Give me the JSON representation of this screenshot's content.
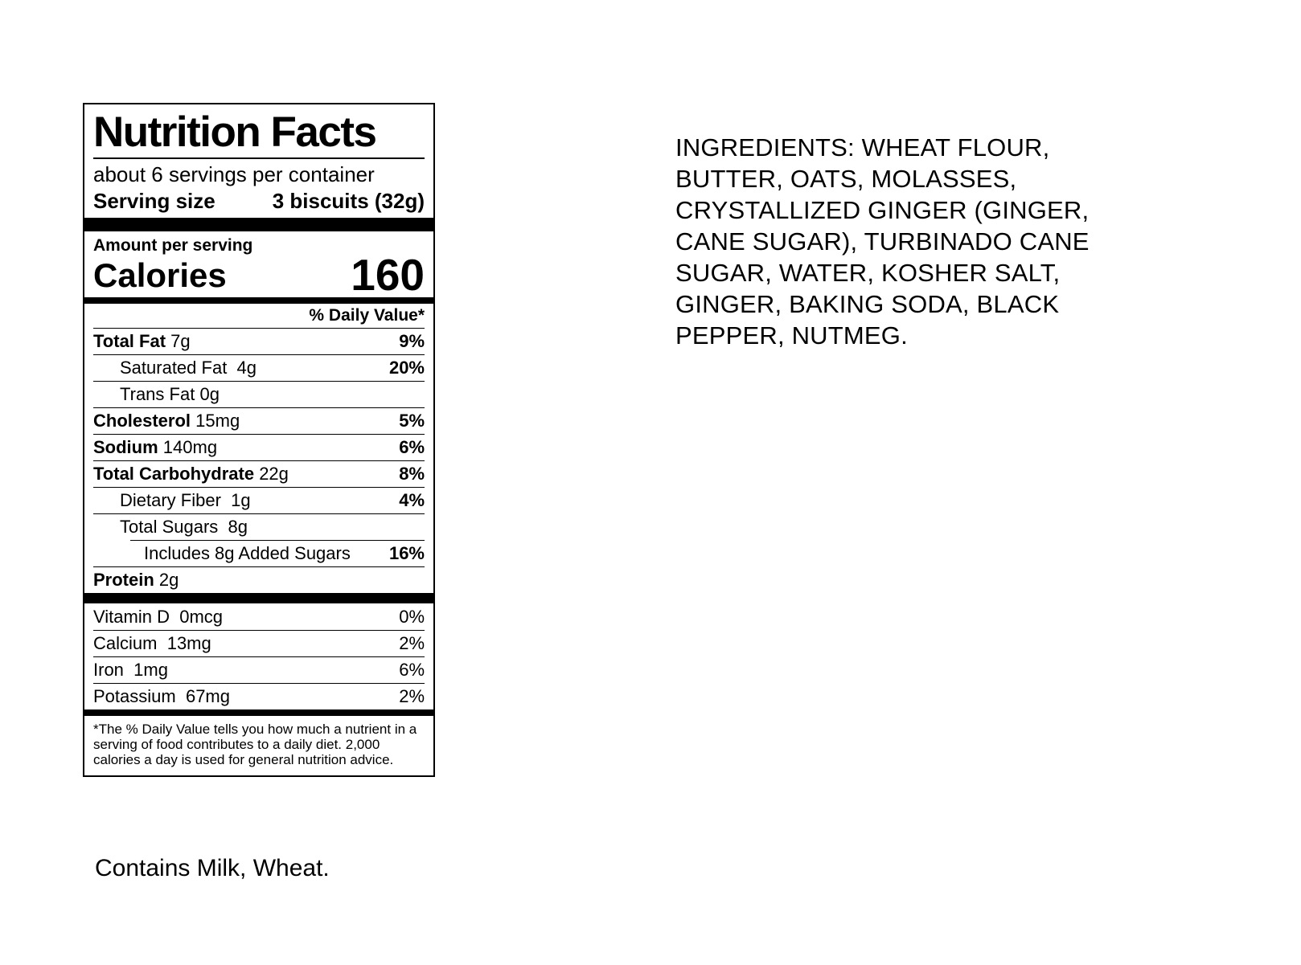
{
  "colors": {
    "text": "#000000",
    "background": "#ffffff"
  },
  "nutrition_label": {
    "title": "Nutrition Facts",
    "servings_per_container": "about 6 servings per container",
    "serving_size_label": "Serving size",
    "serving_size_value": "3 biscuits (32g)",
    "amount_per_serving": "Amount per serving",
    "calories_label": "Calories",
    "calories_value": "160",
    "daily_value_header": "% Daily Value*",
    "rows": [
      {
        "name": "Total Fat",
        "amount": "7g",
        "dv": "9%"
      },
      {
        "name": "Saturated Fat",
        "amount": "4g",
        "dv": "20%"
      },
      {
        "name": "Trans Fat",
        "amount": "0g",
        "dv": ""
      },
      {
        "name": "Cholesterol",
        "amount": "15mg",
        "dv": "5%"
      },
      {
        "name": "Sodium",
        "amount": "140mg",
        "dv": "6%"
      },
      {
        "name": "Total Carbohydrate",
        "amount": "22g",
        "dv": "8%"
      },
      {
        "name": "Dietary Fiber",
        "amount": "1g",
        "dv": "4%"
      },
      {
        "name": "Total Sugars",
        "amount": "8g",
        "dv": ""
      },
      {
        "name": "Includes 8g Added Sugars",
        "amount": "",
        "dv": "16%"
      },
      {
        "name": "Protein",
        "amount": "2g",
        "dv": ""
      }
    ],
    "vitamins": [
      {
        "name": "Vitamin D",
        "amount": "0mcg",
        "dv": "0%"
      },
      {
        "name": "Calcium",
        "amount": "13mg",
        "dv": "2%"
      },
      {
        "name": "Iron",
        "amount": "1mg",
        "dv": "6%"
      },
      {
        "name": "Potassium",
        "amount": "67mg",
        "dv": "2%"
      }
    ],
    "footnote": "*The % Daily Value tells you how much a nutrient in a serving of food contributes to a daily diet. 2,000 calories a day is used for general nutrition advice."
  },
  "ingredients": {
    "lines": [
      "INGREDIENTS: WHEAT FLOUR,",
      "BUTTER, OATS, MOLASSES,",
      "CRYSTALLIZED GINGER (GINGER,",
      "CANE SUGAR), TURBINADO CANE",
      "SUGAR, WATER, KOSHER SALT,",
      "GINGER, BAKING SODA, BLACK",
      "PEPPER, NUTMEG."
    ],
    "full_text": "INGREDIENTS: WHEAT FLOUR, BUTTER, OATS, MOLASSES, CRYSTALLIZED GINGER (GINGER, CANE SUGAR), TURBINADO CANE SUGAR, WATER, KOSHER SALT, GINGER, BAKING SODA, BLACK PEPPER, NUTMEG."
  },
  "allergen": {
    "text": "Contains Milk, Wheat."
  }
}
